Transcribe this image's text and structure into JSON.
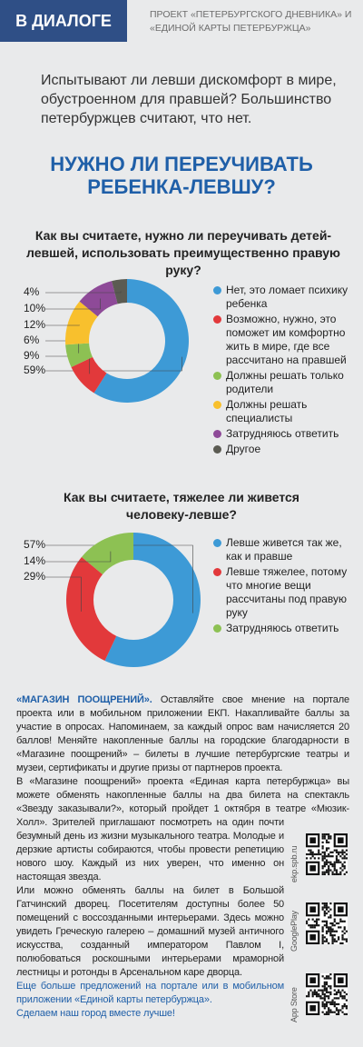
{
  "header": {
    "section": "В ДИАЛОГЕ",
    "project": "ПРОЕКТ «ПЕТЕРБУРГСКОГО ДНЕВНИКА» И «ЕДИНОЙ КАРТЫ ПЕТЕРБУРЖЦА»"
  },
  "intro": "Испытывают ли левши дискомфорт в мире, обустроенном для правшей? Большинство петербуржцев считают, что нет.",
  "headline": "НУЖНО ЛИ ПЕРЕУЧИВАТЬ РЕБЕНКА-ЛЕВШУ?",
  "chart_data": [
    {
      "type": "pie",
      "title": "Как вы считаете, нужно ли переучивать детей-левшей, использовать преимущественно правую руку?",
      "categories": [
        "Нет, это ломает психику ребенка",
        "Возможно, нужно, это поможет им комфортно жить в мире, где все рассчитано на правшей",
        "Должны решать только родители",
        "Должны решать специалисты",
        "Затрудняюсь ответить",
        "Другое"
      ],
      "values": [
        59,
        9,
        6,
        12,
        10,
        4
      ],
      "value_labels": [
        "59%",
        "9%",
        "6%",
        "12%",
        "10%",
        "4%"
      ],
      "colors": [
        "#3d9ad6",
        "#e2393b",
        "#8dc153",
        "#f8c02d",
        "#8e4a98",
        "#5b5b52"
      ]
    },
    {
      "type": "pie",
      "title": "Как вы считаете, тяжелее ли живется человеку-левше?",
      "categories": [
        "Левше живется так же, как и правше",
        "Левше тяжелее, потому что многие вещи рассчитаны под правую руку",
        "Затрудняюсь ответить"
      ],
      "values": [
        57,
        29,
        14
      ],
      "value_labels": [
        "57%",
        "29%",
        "14%"
      ],
      "colors": [
        "#3d9ad6",
        "#e2393b",
        "#8dc153"
      ]
    }
  ],
  "promo": {
    "lead": "«МАГАЗИН ПООЩРЕНИЙ».",
    "paragraphs": [
      "Оставляйте свое мнение на портале проекта или в мобильном приложении ЕКП. Накапливайте баллы за участие в опросах. Напоминаем, за каждый опрос вам начисляется 20 баллов! Меняйте накопленные баллы на городские благодарности в «Магазине поощрений» – билеты в лучшие петербургские театры и музеи, сертификаты и другие призы от партнеров проекта.",
      "В «Магазине поощрений» проекта «Единая карта петербуржца» вы можете обменять накопленные баллы на два билета на спектакль «Звезду заказывали?», который пройдет 1 октября в театре «Мюзик-Холл». Зрителей приглашают посмотреть на один почти безумный день из жизни музыкального театра. Молодые и дерзкие артисты собираются, чтобы провести репетицию нового шоу. Каждый из них уверен, что именно он настоящая звезда.",
      "Или можно обменять баллы на билет в Большой Гатчинский дворец. Посетителям доступны более 50 помещений с воссозданными интерьерами. Здесь можно увидеть Греческую галерею – домашний музей античного искусства, созданный императором Павлом I, полюбоваться роскошными интерьерами мраморной лестницы и ротонды в Арсенальном каре дворца.",
      "Еще больше предложений на портале или в мобильном приложении «Единой карты петербуржца».",
      "Сделаем наш город вместе лучше!"
    ],
    "links": [
      "ekp.spb.ru",
      "GooglePlay",
      "App Store"
    ]
  }
}
